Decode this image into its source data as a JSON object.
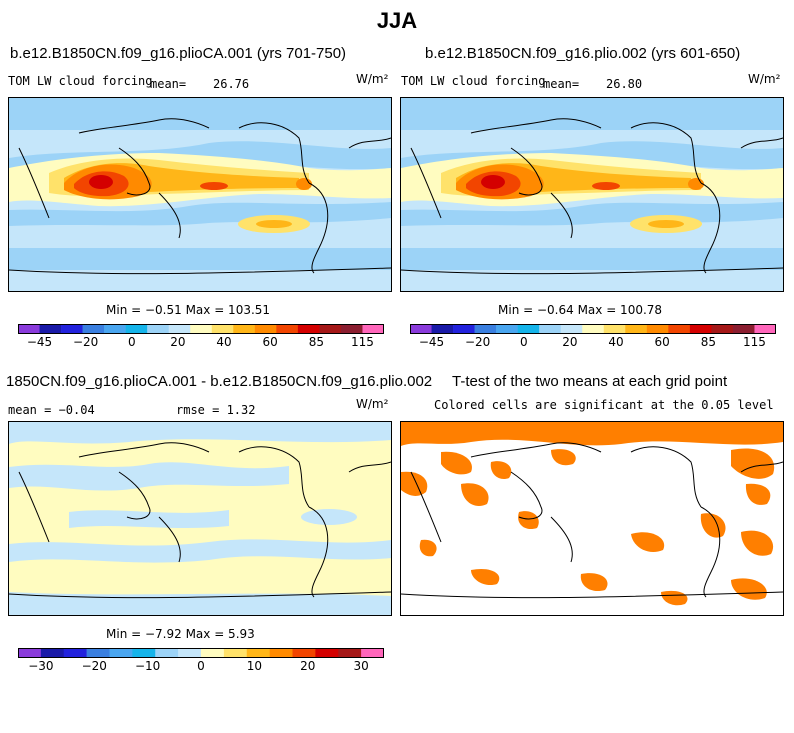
{
  "figure": {
    "title": "JJA"
  },
  "panels": [
    {
      "title": "b.e12.B1850CN.f09_g16.plioCA.001 (yrs 701-750)",
      "variable": "TOM LW cloud forcing",
      "mean_label": "mean=",
      "mean_value": "26.76",
      "units": "W/m²",
      "stats": "Min =  −0.51  Max = 103.51"
    },
    {
      "title": "b.e12.B1850CN.f09_g16.plio.002 (yrs 601-650)",
      "variable": "TOM LW cloud forcing",
      "mean_label": "mean=",
      "mean_value": "26.80",
      "units": "W/m²",
      "stats": "Min =  −0.64  Max = 100.78"
    },
    {
      "title": "1850CN.f09_g16.plioCA.001 - b.e12.B1850CN.f09_g16.plio.002",
      "mean_text": "mean =  −0.04",
      "rmse_text": "rmse =   1.32",
      "units": "W/m²",
      "stats": "Min =  −7.92  Max =   5.93"
    },
    {
      "title": "T-test of the two means at each grid point",
      "subtitle": "Colored cells are significant at the 0.05 level",
      "significance_color": "#ff7f00"
    }
  ],
  "chart_data": [
    {
      "type": "heatmap",
      "title": "b.e12.B1850CN.f09_g16.plioCA.001 (yrs 701-750)",
      "colorbar": {
        "ticks": [
          "−45",
          "−20",
          "0",
          "20",
          "40",
          "60",
          "85",
          "115"
        ],
        "colors": [
          "#8a3bdb",
          "#1a1aa8",
          "#2222dd",
          "#3a7fe0",
          "#4aa6f0",
          "#15b4ea",
          "#9cd3f7",
          "#c5e6fa",
          "#fffcc0",
          "#ffe26a",
          "#ffb618",
          "#ff8a00",
          "#f24500",
          "#d40000",
          "#a51818",
          "#8b1e30",
          "#ff66bb"
        ]
      },
      "stats": {
        "min": -0.51,
        "max": 103.51,
        "mean": 26.76
      },
      "units": "W/m²"
    },
    {
      "type": "heatmap",
      "title": "b.e12.B1850CN.f09_g16.plio.002 (yrs 601-650)",
      "colorbar": {
        "ticks": [
          "−45",
          "−20",
          "0",
          "20",
          "40",
          "60",
          "85",
          "115"
        ],
        "colors": [
          "#8a3bdb",
          "#1a1aa8",
          "#2222dd",
          "#3a7fe0",
          "#4aa6f0",
          "#15b4ea",
          "#9cd3f7",
          "#c5e6fa",
          "#fffcc0",
          "#ffe26a",
          "#ffb618",
          "#ff8a00",
          "#f24500",
          "#d40000",
          "#a51818",
          "#8b1e30",
          "#ff66bb"
        ]
      },
      "stats": {
        "min": -0.64,
        "max": 100.78,
        "mean": 26.8
      },
      "units": "W/m²"
    },
    {
      "type": "heatmap",
      "title": "1850CN.f09_g16.plioCA.001 - b.e12.B1850CN.f09_g16.plio.002",
      "colorbar": {
        "ticks": [
          "−30",
          "−20",
          "−10",
          "0",
          "10",
          "20",
          "30"
        ],
        "colors": [
          "#8a3bdb",
          "#1a1aa8",
          "#2222dd",
          "#3a7fe0",
          "#4aa6f0",
          "#15b4ea",
          "#9cd3f7",
          "#c5e6fa",
          "#fffcc0",
          "#ffe26a",
          "#ffb618",
          "#ff8a00",
          "#f24500",
          "#d40000",
          "#a51818",
          "#ff66bb"
        ]
      },
      "stats": {
        "min": -7.92,
        "max": 5.93,
        "mean": -0.04,
        "rmse": 1.32
      },
      "units": "W/m²"
    },
    {
      "type": "heatmap",
      "title": "T-test of the two means at each grid point",
      "subtitle": "Colored cells are significant at the 0.05 level",
      "significance_color": "#ff7f00"
    }
  ]
}
